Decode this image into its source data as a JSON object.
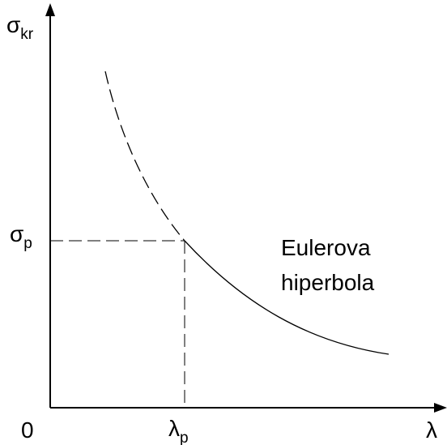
{
  "axes": {
    "y_label": {
      "symbol": "σ",
      "subscript": "kr"
    },
    "y_mark": {
      "symbol": "σ",
      "subscript": "p"
    },
    "origin": "0",
    "x_mark": {
      "symbol": "λ",
      "subscript": "p"
    },
    "x_label": "λ"
  },
  "curve_label": [
    "Eulerova",
    "hiperbola"
  ]
}
